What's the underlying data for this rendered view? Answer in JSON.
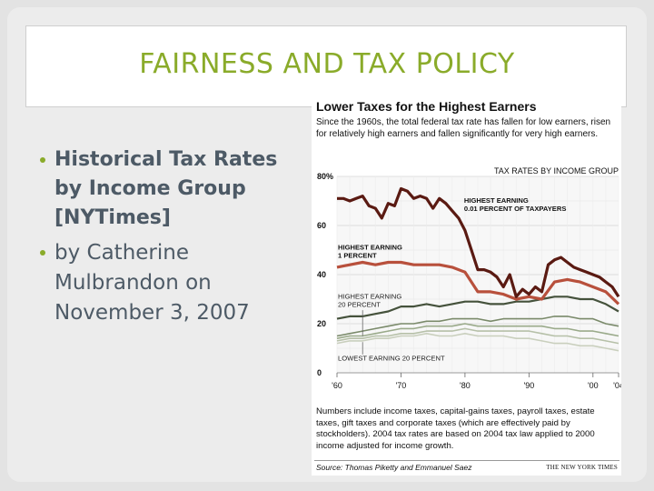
{
  "slide": {
    "title": "FAIRNESS AND TAX POLICY",
    "bullets": [
      {
        "text": "Historical Tax Rates by Income Group [NYTimes]"
      },
      {
        "text": "by Catherine Mulbrandon on November 3, 2007"
      }
    ]
  },
  "colors": {
    "accent": "#8aab2a",
    "body_text": "#4d5a66",
    "series_top": "#5a1a12",
    "series_1pct": "#b8503c",
    "series_bottom_dark": "#45523c"
  },
  "figure": {
    "title": "Lower Taxes for the Highest Earners",
    "subtitle": "Since the 1960s, the total federal tax rate has fallen for low earners, risen for relatively high earners and fallen significantly for very high earners.",
    "notes": "Numbers include income taxes, capital-gains taxes, payroll taxes, estate taxes, gift taxes and corporate taxes (which are effectively paid by stockholders). 2004 tax rates are based on 2004 tax law applied to 2000 income adjusted for income growth.",
    "source": "Source: Thomas Piketty and Emmanuel Saez",
    "credit": "THE NEW YORK TIMES"
  },
  "chart_data": {
    "type": "line",
    "title": "",
    "header": "TAX RATES BY INCOME GROUP",
    "xlim": [
      1960,
      2004
    ],
    "ylim": [
      0,
      80
    ],
    "x_tick_labels": [
      "'60",
      "'70",
      "'80",
      "'90",
      "'00",
      "'04"
    ],
    "x_tick_values": [
      1960,
      1970,
      1980,
      1990,
      2000,
      2004
    ],
    "y_tick_labels": [
      "80%",
      "60",
      "40",
      "20",
      "0"
    ],
    "y_tick_values": [
      80,
      60,
      40,
      20,
      0
    ],
    "grid": true,
    "series": [
      {
        "name": "HIGHEST EARNING 0.01 PERCENT OF TAXPAYERS",
        "color": "#5a1a12",
        "x": [
          1960,
          1961,
          1962,
          1963,
          1964,
          1965,
          1966,
          1967,
          1968,
          1969,
          1970,
          1971,
          1972,
          1973,
          1974,
          1975,
          1976,
          1977,
          1978,
          1979,
          1980,
          1981,
          1982,
          1983,
          1984,
          1985,
          1986,
          1987,
          1988,
          1989,
          1990,
          1991,
          1992,
          1993,
          1994,
          1995,
          1996,
          1997,
          1998,
          1999,
          2000,
          2001,
          2002,
          2003,
          2004
        ],
        "values": [
          71,
          71,
          70,
          71,
          72,
          68,
          67,
          63,
          69,
          68,
          75,
          74,
          71,
          72,
          71,
          67,
          71,
          69,
          66,
          63,
          58,
          50,
          42,
          42,
          41,
          39,
          35,
          40,
          31,
          34,
          32,
          35,
          33,
          44,
          46,
          47,
          45,
          43,
          42,
          41,
          40,
          39,
          37,
          35,
          31
        ]
      },
      {
        "name": "HIGHEST EARNING 1 PERCENT",
        "color": "#b8503c",
        "x": [
          1960,
          1962,
          1964,
          1966,
          1968,
          1970,
          1972,
          1974,
          1976,
          1978,
          1980,
          1981,
          1982,
          1984,
          1986,
          1988,
          1990,
          1992,
          1994,
          1996,
          1998,
          2000,
          2002,
          2004
        ],
        "values": [
          43,
          44,
          45,
          44,
          45,
          45,
          44,
          44,
          44,
          43,
          41,
          37,
          33,
          33,
          32,
          30,
          31,
          30,
          37,
          38,
          37,
          35,
          33,
          28
        ]
      },
      {
        "name": "HIGHEST EARNING 20 PERCENT",
        "color": "#45523c",
        "x": [
          1960,
          1962,
          1964,
          1966,
          1968,
          1970,
          1972,
          1974,
          1976,
          1978,
          1980,
          1982,
          1984,
          1986,
          1988,
          1990,
          1992,
          1994,
          1996,
          1998,
          2000,
          2002,
          2004
        ],
        "values": [
          22,
          23,
          23,
          24,
          25,
          27,
          27,
          28,
          27,
          28,
          29,
          29,
          28,
          28,
          29,
          29,
          30,
          31,
          31,
          30,
          30,
          28,
          25
        ]
      },
      {
        "name": "",
        "color": "#7a8a6a",
        "x": [
          1960,
          1962,
          1964,
          1966,
          1968,
          1970,
          1972,
          1974,
          1976,
          1978,
          1980,
          1982,
          1984,
          1986,
          1988,
          1990,
          1992,
          1994,
          1996,
          1998,
          2000,
          2002,
          2004
        ],
        "values": [
          15,
          16,
          17,
          18,
          19,
          20,
          20,
          21,
          21,
          22,
          22,
          22,
          21,
          22,
          22,
          22,
          22,
          23,
          23,
          22,
          22,
          20,
          19
        ]
      },
      {
        "name": "",
        "color": "#9aaa8a",
        "x": [
          1960,
          1962,
          1964,
          1966,
          1968,
          1970,
          1972,
          1974,
          1976,
          1978,
          1980,
          1982,
          1984,
          1986,
          1988,
          1990,
          1992,
          1994,
          1996,
          1998,
          2000,
          2002,
          2004
        ],
        "values": [
          14,
          15,
          15,
          16,
          17,
          18,
          18,
          19,
          19,
          19,
          20,
          19,
          19,
          19,
          19,
          19,
          19,
          18,
          18,
          17,
          17,
          16,
          15
        ]
      },
      {
        "name": "",
        "color": "#b6c0a8",
        "x": [
          1960,
          1962,
          1964,
          1966,
          1968,
          1970,
          1972,
          1974,
          1976,
          1978,
          1980,
          1982,
          1984,
          1986,
          1988,
          1990,
          1992,
          1994,
          1996,
          1998,
          2000,
          2002,
          2004
        ],
        "values": [
          13,
          14,
          14,
          15,
          15,
          16,
          16,
          17,
          17,
          17,
          18,
          17,
          17,
          17,
          17,
          17,
          16,
          15,
          15,
          14,
          14,
          13,
          12
        ]
      },
      {
        "name": "LOWEST EARNING 20 PERCENT",
        "color": "#c9cfbd",
        "x": [
          1960,
          1962,
          1964,
          1966,
          1968,
          1970,
          1972,
          1974,
          1976,
          1978,
          1980,
          1982,
          1984,
          1986,
          1988,
          1990,
          1992,
          1994,
          1996,
          1998,
          2000,
          2002,
          2004
        ],
        "values": [
          12,
          13,
          13,
          14,
          14,
          15,
          15,
          16,
          15,
          15,
          16,
          15,
          15,
          15,
          14,
          14,
          13,
          12,
          12,
          11,
          11,
          10,
          9
        ]
      }
    ],
    "annotations": [
      {
        "text": "HIGHEST EARNING 0.01 PERCENT OF TAXPAYERS",
        "x": 1979,
        "y": 70
      },
      {
        "text": "HIGHEST EARNING 1 PERCENT",
        "x": 1960,
        "y": 51
      },
      {
        "text": "HIGHEST EARNING 20 PERCENT",
        "x": 1960,
        "y": 31
      },
      {
        "text": "LOWEST EARNING 20 PERCENT",
        "x": 1960,
        "y": 5
      }
    ]
  }
}
